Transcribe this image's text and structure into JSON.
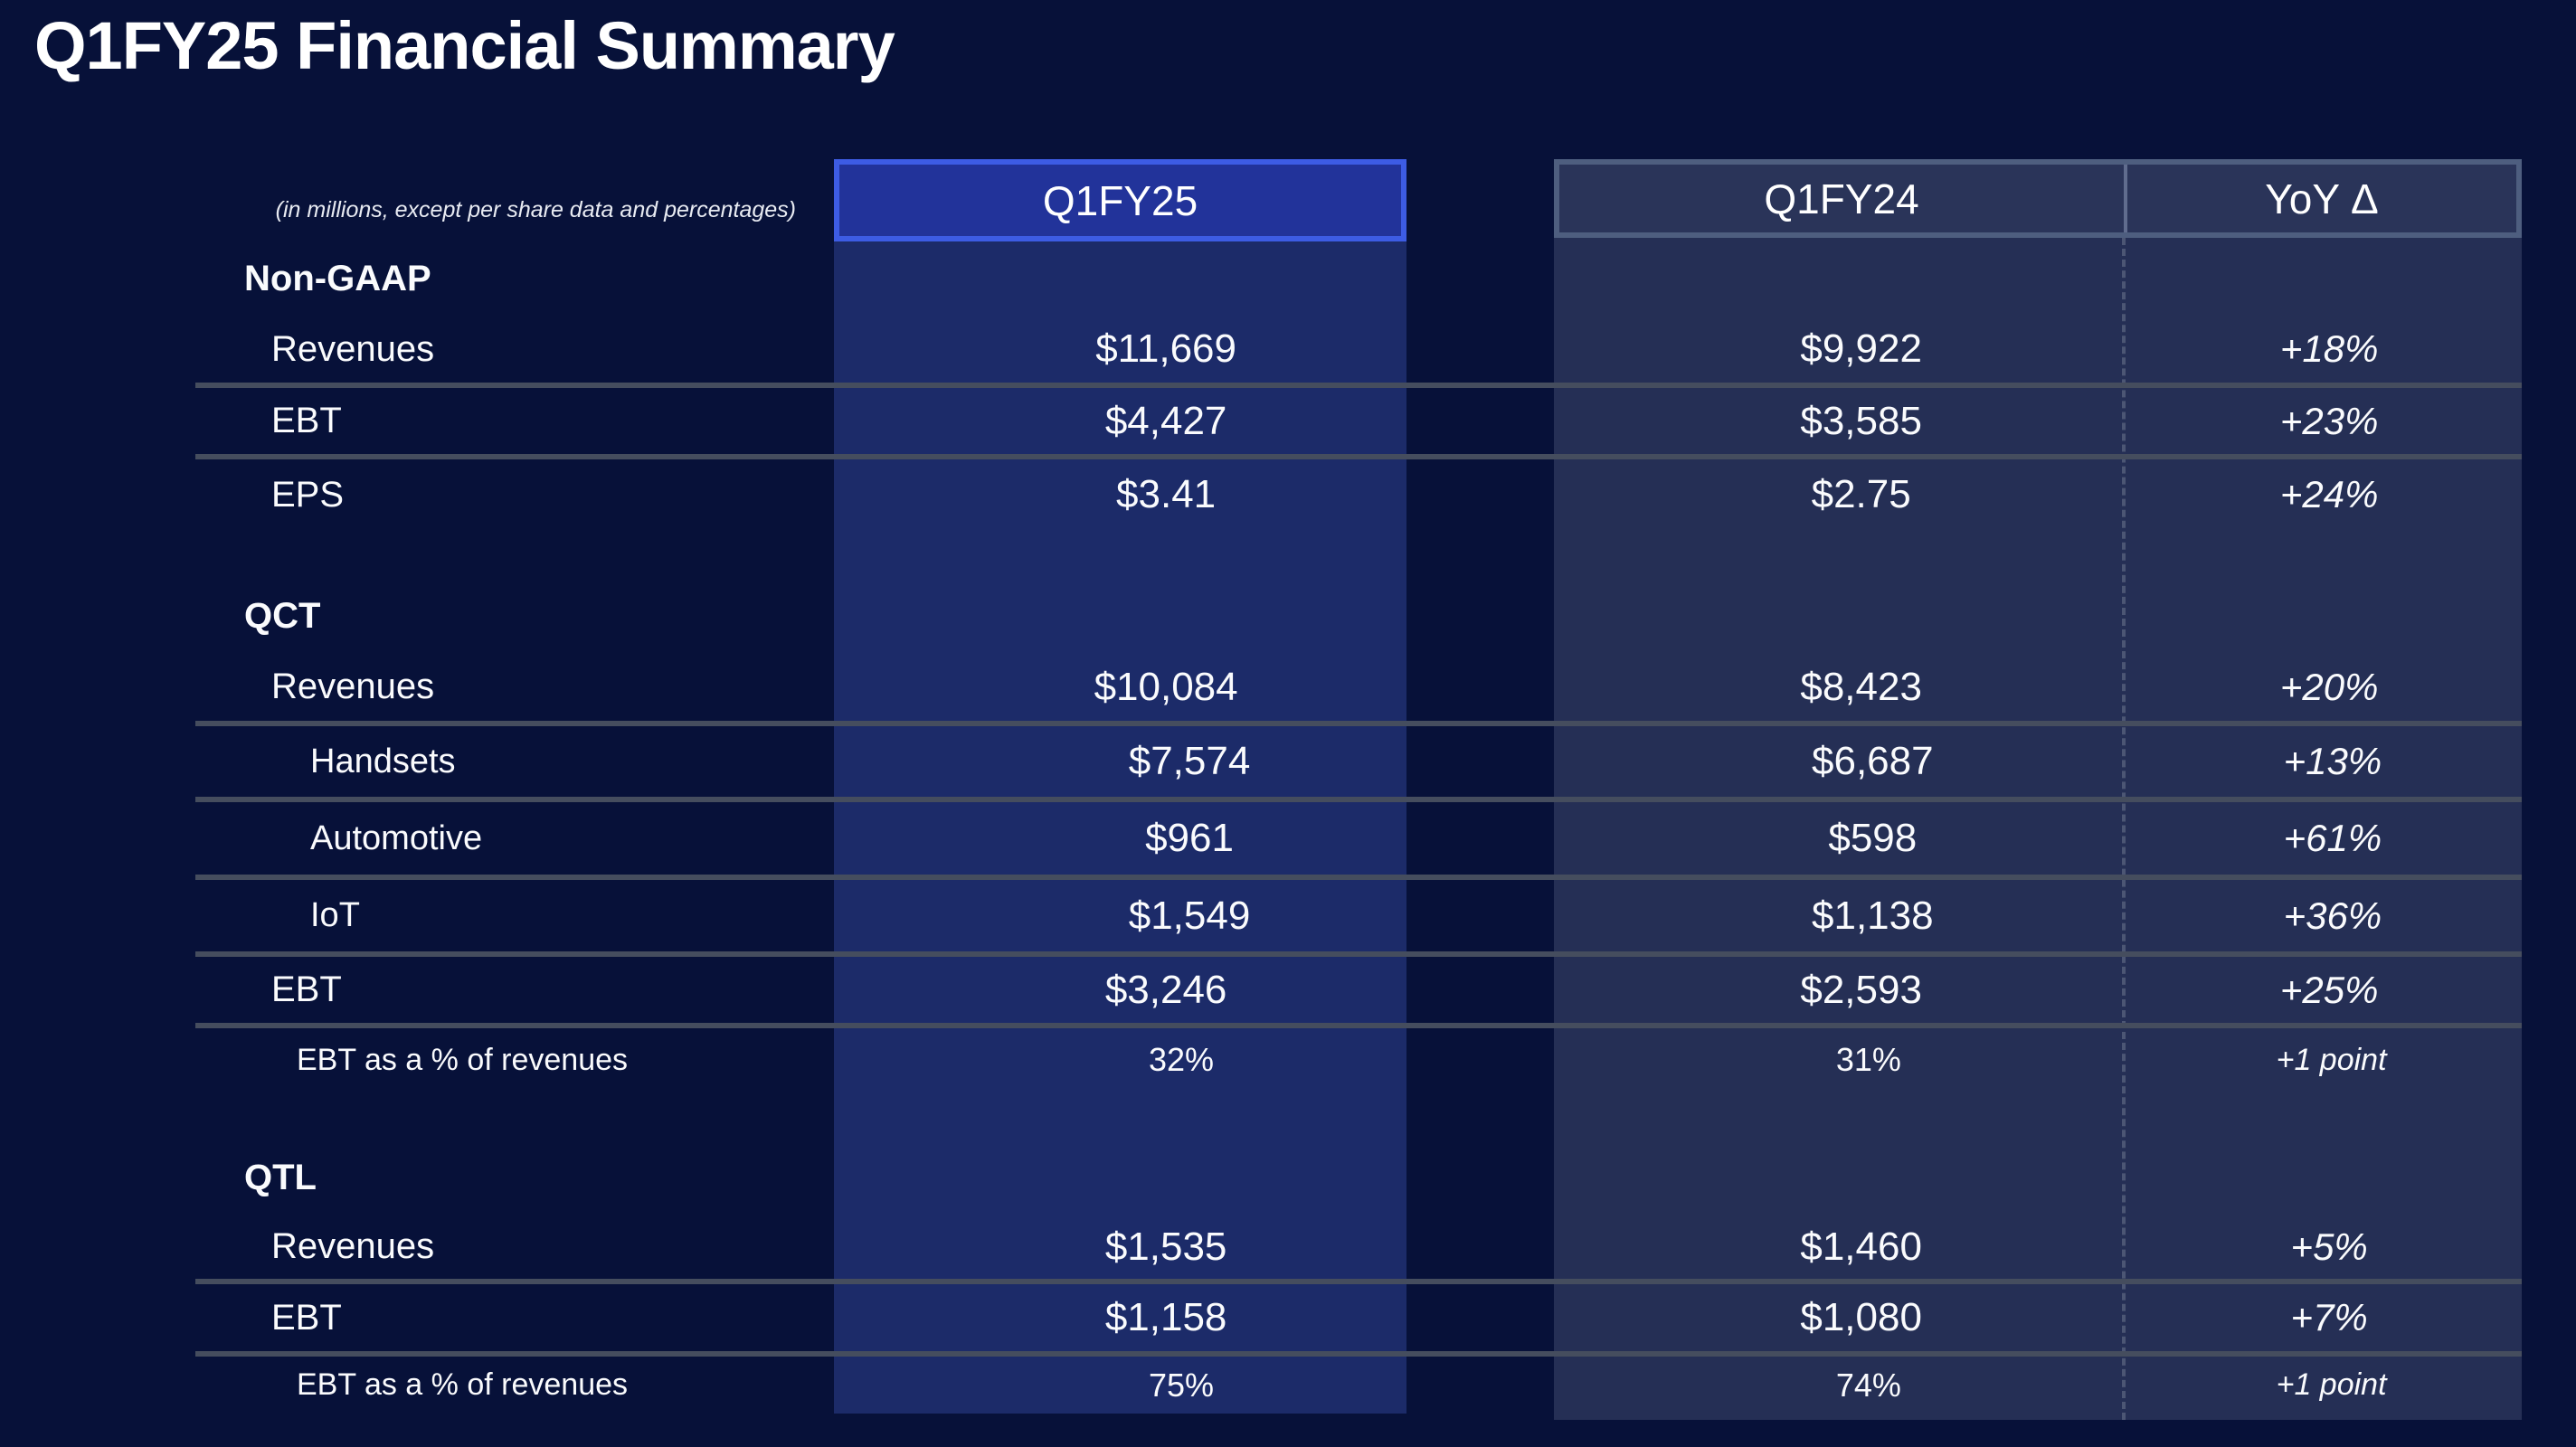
{
  "title": "Q1FY25 Financial Summary",
  "note": "(in millions, except per share data and percentages)",
  "columns": {
    "current": "Q1FY25",
    "prior": "Q1FY24",
    "yoy": "YoY Δ"
  },
  "colors": {
    "page_background": "#071139",
    "current_column_fill": "#1c2b69",
    "current_header_fill": "#22339a",
    "current_header_border": "#3d5ce4",
    "right_table_fill": "#252f55",
    "right_header_fill": "#2a3459",
    "right_header_border": "#4e5e7f",
    "row_divider": "#454d5e",
    "text": "#fafbfd"
  },
  "sections": [
    {
      "name": "Non-GAAP",
      "rows": [
        {
          "label": "Revenues",
          "indent": 1,
          "current": "$11,669",
          "prior": "$9,922",
          "yoy": "+18%",
          "line_below": true
        },
        {
          "label": "EBT",
          "indent": 1,
          "current": "$4,427",
          "prior": "$3,585",
          "yoy": "+23%",
          "line_below": true
        },
        {
          "label": "EPS",
          "indent": 1,
          "current": "$3.41",
          "prior": "$2.75",
          "yoy": "+24%",
          "line_below": false
        }
      ]
    },
    {
      "name": "QCT",
      "rows": [
        {
          "label": "Revenues",
          "indent": 1,
          "current": "$10,084",
          "prior": "$8,423",
          "yoy": "+20%",
          "line_below": true
        },
        {
          "label": "Handsets",
          "indent": 2,
          "current": "$7,574",
          "prior": "$6,687",
          "yoy": "+13%",
          "line_below": true
        },
        {
          "label": "Automotive",
          "indent": 2,
          "current": "$961",
          "prior": "$598",
          "yoy": "+61%",
          "line_below": true
        },
        {
          "label": "IoT",
          "indent": 2,
          "current": "$1,549",
          "prior": "$1,138",
          "yoy": "+36%",
          "line_below": true
        },
        {
          "label": "EBT",
          "indent": 1,
          "current": "$3,246",
          "prior": "$2,593",
          "yoy": "+25%",
          "line_below": true
        },
        {
          "label": "EBT as a % of revenues",
          "indent": "pct",
          "current": "32%",
          "prior": "31%",
          "yoy": "+1 point",
          "line_below": false
        }
      ]
    },
    {
      "name": "QTL",
      "rows": [
        {
          "label": "Revenues",
          "indent": 1,
          "current": "$1,535",
          "prior": "$1,460",
          "yoy": "+5%",
          "line_below": true
        },
        {
          "label": "EBT",
          "indent": 1,
          "current": "$1,158",
          "prior": "$1,080",
          "yoy": "+7%",
          "line_below": true
        },
        {
          "label": "EBT as a % of revenues",
          "indent": "pct",
          "current": "75%",
          "prior": "74%",
          "yoy": "+1 point",
          "line_below": false
        }
      ]
    }
  ]
}
